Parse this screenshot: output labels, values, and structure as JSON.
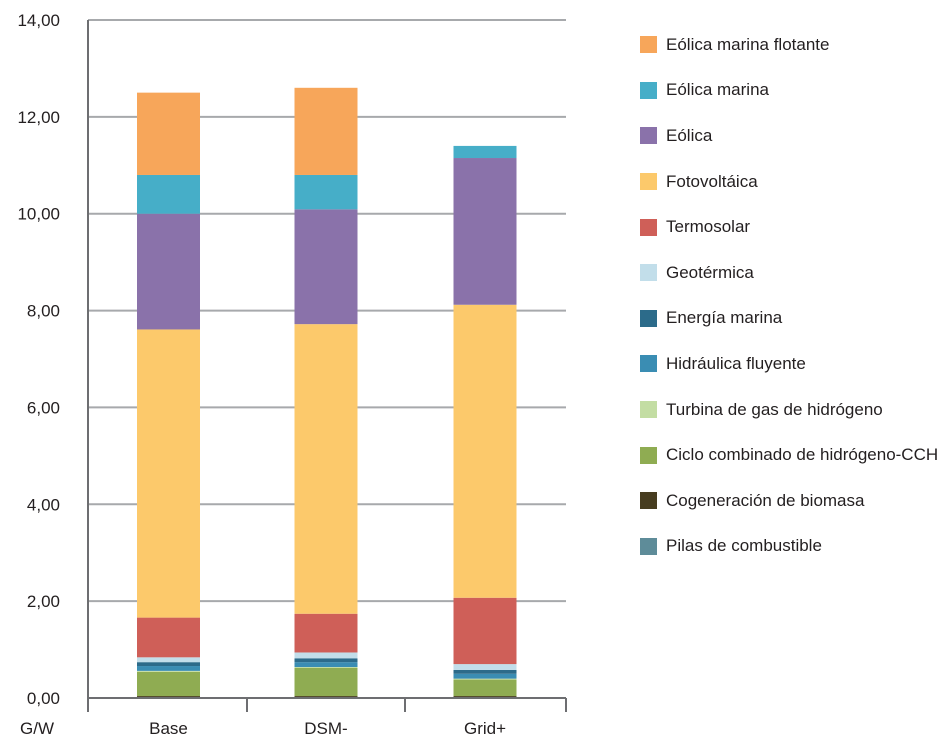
{
  "chart_data": {
    "type": "bar",
    "stacked": true,
    "unit_label": "G/W",
    "categories": [
      "Base",
      "DSM-",
      "Grid+"
    ],
    "ylim": [
      0,
      14
    ],
    "yticks": [
      "0,00",
      "2,00",
      "4,00",
      "6,00",
      "8,00",
      "10,00",
      "12,00",
      "14,00"
    ],
    "grid": true,
    "legend_position": "right",
    "series": [
      {
        "name": "Pilas de combustible",
        "color": "#5e8c99",
        "values": [
          0.02,
          0.02,
          0.02
        ]
      },
      {
        "name": "Cogeneración de biomasa",
        "color": "#473d20",
        "values": [
          0.02,
          0.02,
          0.02
        ]
      },
      {
        "name": "Ciclo combinado de hidrógeno-CCH",
        "color": "#8fac52",
        "values": [
          0.5,
          0.58,
          0.34
        ]
      },
      {
        "name": "Turbina de gas de hidrógeno",
        "color": "#c3dda3",
        "values": [
          0.02,
          0.02,
          0.02
        ]
      },
      {
        "name": "Hidráulica fluyente",
        "color": "#3a8db3",
        "values": [
          0.1,
          0.1,
          0.1
        ]
      },
      {
        "name": "Energía marina",
        "color": "#2c6b8a",
        "values": [
          0.08,
          0.08,
          0.08
        ]
      },
      {
        "name": "Geotérmica",
        "color": "#c2deea",
        "values": [
          0.1,
          0.12,
          0.12
        ]
      },
      {
        "name": "Termosolar",
        "color": "#cf5f58",
        "values": [
          0.82,
          0.8,
          1.37
        ]
      },
      {
        "name": "Fotovoltáica",
        "color": "#fcc96b",
        "values": [
          5.95,
          5.98,
          6.05
        ]
      },
      {
        "name": "Eólica",
        "color": "#8a72aa",
        "values": [
          2.39,
          2.37,
          3.03
        ]
      },
      {
        "name": "Eólica marina",
        "color": "#46aec8",
        "values": [
          0.8,
          0.71,
          0.25
        ]
      },
      {
        "name": "Eólica marina flotante",
        "color": "#f7a65a",
        "values": [
          1.7,
          1.8,
          0
        ]
      }
    ]
  }
}
